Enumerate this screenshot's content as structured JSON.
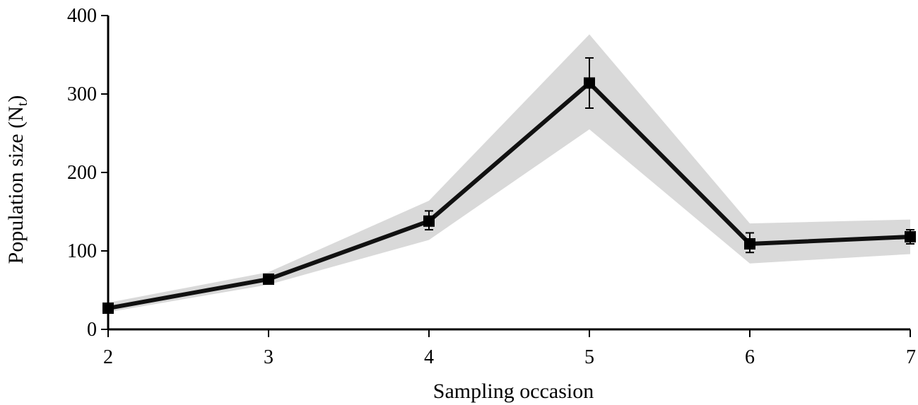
{
  "chart_data": {
    "type": "line",
    "title": "",
    "xlabel": "Sampling occasion",
    "ylabel": "Population size (N",
    "ylabel_subscript": "t",
    "ylabel_close": ")",
    "x": [
      2,
      3,
      4,
      5,
      6,
      7
    ],
    "x_tick_labels": [
      "2",
      "3",
      "4",
      "5",
      "6",
      "7"
    ],
    "y_tick_labels": [
      "0",
      "100",
      "200",
      "300",
      "400"
    ],
    "xlim": [
      2,
      7
    ],
    "ylim": [
      0,
      400
    ],
    "grid": false,
    "series": [
      {
        "values": [
          27,
          64,
          138,
          314,
          109,
          118
        ],
        "error_low": [
          24,
          61,
          127,
          282,
          98,
          109
        ],
        "error_high": [
          30,
          67,
          151,
          346,
          123,
          127
        ],
        "band_low": [
          22,
          57,
          114,
          255,
          84,
          96
        ],
        "band_high": [
          34,
          73,
          164,
          376,
          135,
          140
        ],
        "marker": "square",
        "line_color": "#111111",
        "band_color": "#d9d9d9"
      }
    ]
  }
}
